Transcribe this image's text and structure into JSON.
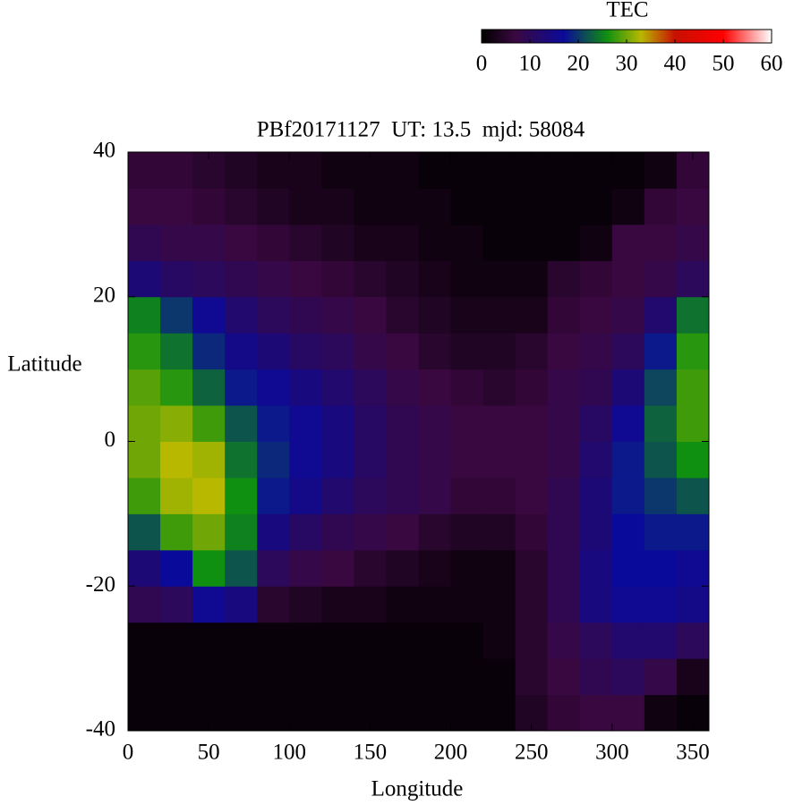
{
  "chart_data": {
    "type": "heatmap",
    "title": "PBf20171127  UT: 13.5  mjd: 58084",
    "xlabel": "Longitude",
    "ylabel": "Latitude",
    "colorbar_label": "TEC",
    "x": [
      10,
      30,
      50,
      70,
      90,
      110,
      130,
      150,
      170,
      190,
      210,
      230,
      250,
      270,
      290,
      310,
      330,
      350
    ],
    "y": [
      -37.5,
      -32.5,
      -27.5,
      -22.5,
      -17.5,
      -12.5,
      -7.5,
      -2.5,
      2.5,
      7.5,
      12.5,
      17.5,
      22.5,
      27.5,
      32.5,
      37.5
    ],
    "z": [
      [
        1,
        1,
        1,
        1,
        1,
        1,
        1,
        1,
        1,
        1,
        1,
        1,
        4,
        6,
        7,
        7,
        2,
        1
      ],
      [
        1,
        1,
        1,
        1,
        1,
        1,
        1,
        1,
        1,
        1,
        1,
        1,
        5,
        7,
        9,
        10,
        8,
        3
      ],
      [
        1,
        1,
        1,
        1,
        1,
        1,
        1,
        1,
        1,
        1,
        1,
        2,
        5,
        8,
        10,
        12,
        12,
        10
      ],
      [
        9,
        10,
        16,
        14,
        5,
        4,
        3,
        3,
        2,
        2,
        2,
        2,
        5,
        9,
        14,
        16,
        16,
        15
      ],
      [
        13,
        17,
        26,
        22,
        10,
        8,
        7,
        5,
        4,
        3,
        2,
        2,
        5,
        9,
        14,
        17,
        17,
        16
      ],
      [
        22,
        28,
        30,
        25,
        14,
        11,
        9,
        8,
        7,
        5,
        4,
        4,
        6,
        9,
        13,
        17,
        18,
        18
      ],
      [
        28,
        32,
        33,
        26,
        18,
        15,
        12,
        10,
        9,
        8,
        6,
        6,
        7,
        9,
        13,
        18,
        20,
        22
      ],
      [
        30,
        33,
        32,
        24,
        19,
        16,
        14,
        11,
        9,
        8,
        7,
        7,
        7,
        8,
        12,
        18,
        22,
        26
      ],
      [
        30,
        31,
        28,
        22,
        18,
        16,
        14,
        11,
        9,
        8,
        7,
        7,
        7,
        8,
        11,
        16,
        23,
        28
      ],
      [
        29,
        27,
        23,
        18,
        16,
        14,
        12,
        10,
        8,
        7,
        6,
        5,
        6,
        8,
        9,
        13,
        21,
        28
      ],
      [
        27,
        24,
        19,
        15,
        13,
        11,
        10,
        8,
        7,
        5,
        4,
        4,
        5,
        7,
        8,
        10,
        18,
        27
      ],
      [
        25,
        20,
        16,
        12,
        10,
        9,
        8,
        7,
        5,
        4,
        3,
        3,
        3,
        6,
        7,
        8,
        12,
        24
      ],
      [
        13,
        11,
        10,
        9,
        8,
        7,
        6,
        5,
        4,
        3,
        2,
        2,
        2,
        5,
        6,
        7,
        8,
        10
      ],
      [
        9,
        8,
        8,
        7,
        6,
        5,
        4,
        3,
        3,
        2,
        2,
        1,
        1,
        1,
        2,
        7,
        7,
        8
      ],
      [
        7,
        7,
        6,
        5,
        4,
        3,
        3,
        2,
        2,
        2,
        1,
        1,
        1,
        1,
        1,
        2,
        6,
        7
      ],
      [
        6,
        6,
        5,
        4,
        3,
        3,
        2,
        2,
        2,
        1,
        1,
        1,
        1,
        1,
        1,
        1,
        2,
        6
      ]
    ],
    "xlim": [
      0,
      360
    ],
    "xticks": [
      0,
      50,
      100,
      150,
      200,
      250,
      300,
      350
    ],
    "ylim": [
      -40,
      40
    ],
    "yticks": [
      -40,
      -20,
      0,
      20,
      40
    ],
    "clim": [
      0,
      60
    ],
    "cticks": [
      0,
      10,
      20,
      30,
      40,
      50,
      60
    ],
    "colorscale": [
      [
        0,
        "#000000"
      ],
      [
        7,
        "#3a0840"
      ],
      [
        17,
        "#0a0a9a"
      ],
      [
        26,
        "#109010"
      ],
      [
        33,
        "#b8b800"
      ],
      [
        40,
        "#c81000"
      ],
      [
        50,
        "#ff0000"
      ],
      [
        60,
        "#ffffff"
      ]
    ]
  }
}
